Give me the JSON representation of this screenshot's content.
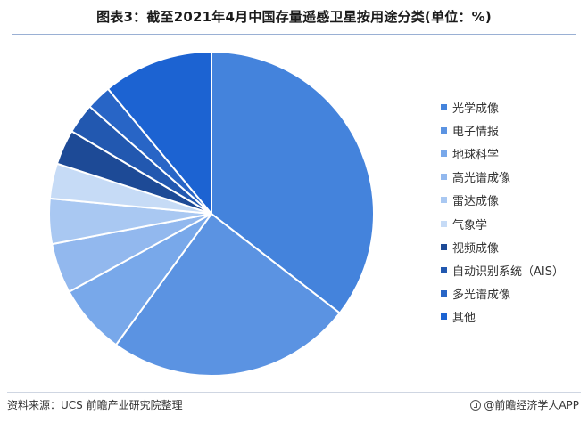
{
  "title": "图表3：截至2021年4月中国存量遥感卫星按用途分类(单位：%)",
  "source": "资料来源：UCS 前瞻产业研究院整理",
  "brand": "@前瞻经济学人APP",
  "colors": {
    "divider": "#ffffff"
  },
  "chart_data": {
    "type": "pie",
    "title": "图表3：截至2021年4月中国存量遥感卫星按用途分类(单位：%)",
    "legend_position": "right",
    "slices": [
      {
        "label": "光学成像",
        "value": 35.5,
        "color": "#4483dc"
      },
      {
        "label": "电子情报",
        "value": 24.5,
        "color": "#5b93e2"
      },
      {
        "label": "地球科学",
        "value": 7.0,
        "color": "#78a8ea"
      },
      {
        "label": "高光谱成像",
        "value": 5.0,
        "color": "#92b8ee"
      },
      {
        "label": "雷达成像",
        "value": 4.5,
        "color": "#a9c8f2"
      },
      {
        "label": "气象学",
        "value": 3.5,
        "color": "#c6dbf6"
      },
      {
        "label": "视频成像",
        "value": 3.5,
        "color": "#1d4a96"
      },
      {
        "label": "自动识别系统（AIS）",
        "value": 3.0,
        "color": "#2258b0"
      },
      {
        "label": "多光谱成像",
        "value": 2.5,
        "color": "#2865c6"
      },
      {
        "label": "其他",
        "value": 11.0,
        "color": "#1c63d2"
      }
    ]
  }
}
